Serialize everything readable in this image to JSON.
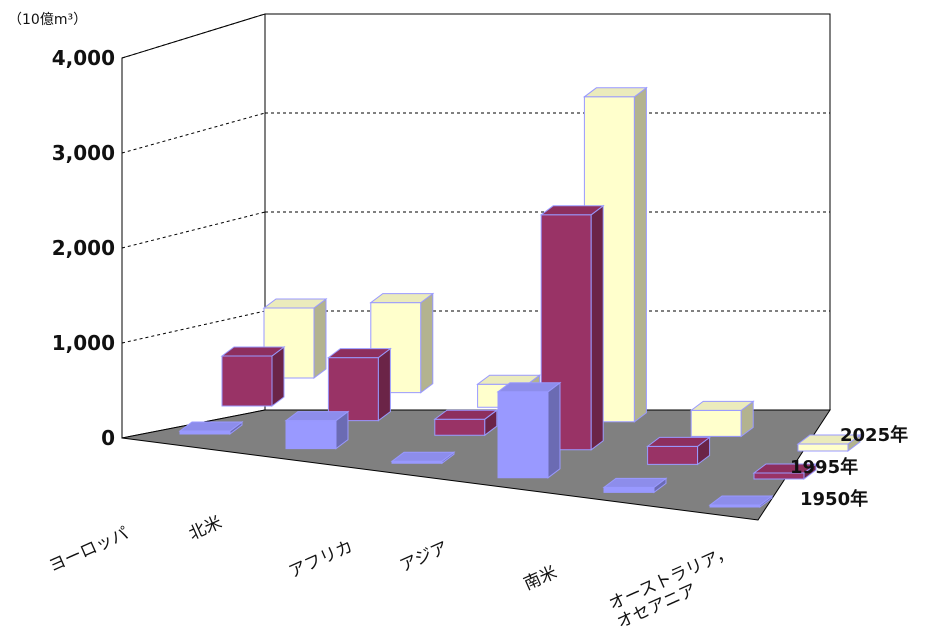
{
  "chart_data": {
    "type": "bar",
    "subtype": "3d-clustered-depth",
    "unit_label": "（10億m³）",
    "categories": [
      "ヨーロッパ",
      "北米",
      "アフリカ",
      "アジア",
      "南米",
      "オーストラリア，オセアニア"
    ],
    "y_ticks": [
      "0",
      "1,000",
      "2,000",
      "3,000",
      "4,000"
    ],
    "ylim": [
      0,
      4000
    ],
    "grid": true,
    "series": [
      {
        "name": "1950年",
        "color": "#9999ff",
        "values": [
          30,
          280,
          20,
          860,
          50,
          20
        ]
      },
      {
        "name": "1995年",
        "color": "#993366",
        "values": [
          500,
          630,
          160,
          2350,
          180,
          60
        ]
      },
      {
        "name": "2025年",
        "color": "#ffffcc",
        "values": [
          700,
          900,
          230,
          3250,
          260,
          70
        ]
      }
    ]
  }
}
